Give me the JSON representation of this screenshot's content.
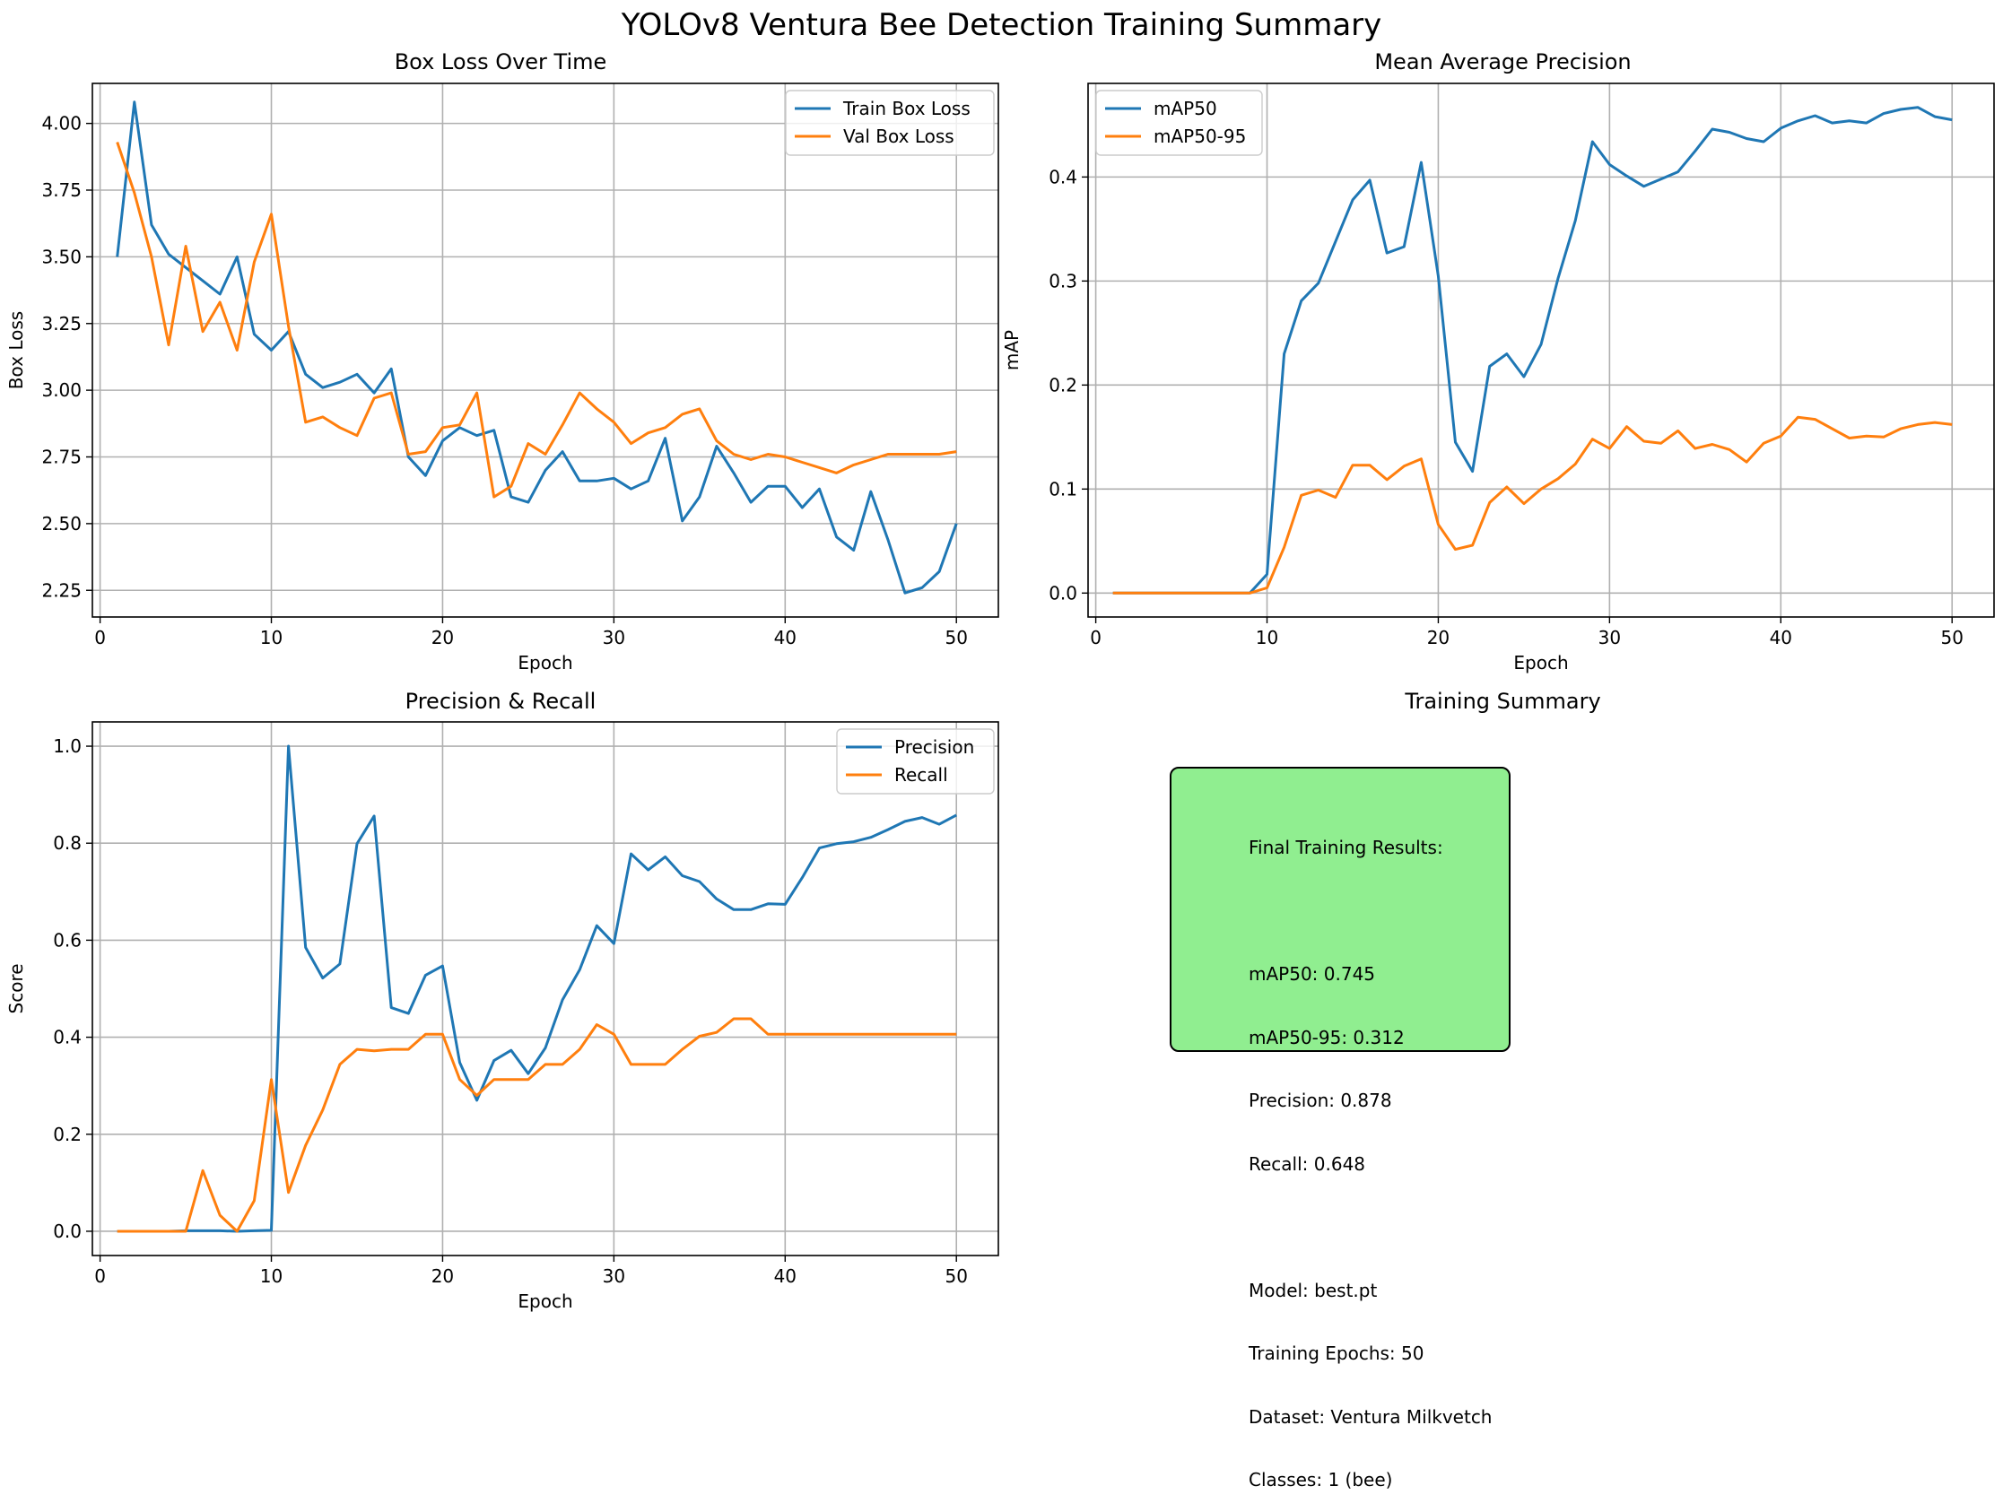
{
  "page_title": "YOLOv8 Ventura Bee Detection Training Summary",
  "summary": {
    "title": "Training Summary",
    "lines": [
      "Final Training Results:",
      "",
      "mAP50: 0.745",
      "mAP50-95: 0.312",
      "Precision: 0.878",
      "Recall: 0.648",
      "",
      "Model: best.pt",
      "Training Epochs: 50",
      "Dataset: Ventura Milkvetch",
      "Classes: 1 (bee)"
    ],
    "box_color": "#90ee90"
  },
  "chart_data": [
    {
      "id": "box_loss",
      "type": "line",
      "title": "Box Loss Over Time",
      "xlabel": "Epoch",
      "ylabel": "Box Loss",
      "xlim": [
        -0.45,
        52.45
      ],
      "ylim": [
        2.15,
        4.15
      ],
      "xticks": [
        0,
        10,
        20,
        30,
        40,
        50
      ],
      "yticks": [
        2.25,
        2.5,
        2.75,
        3.0,
        3.25,
        3.5,
        3.75,
        4.0
      ],
      "ytick_labels": [
        "2.25",
        "2.50",
        "2.75",
        "3.00",
        "3.25",
        "3.50",
        "3.75",
        "4.00"
      ],
      "grid": true,
      "legend": "top-right",
      "x": [
        1,
        2,
        3,
        4,
        5,
        6,
        7,
        8,
        9,
        10,
        11,
        12,
        13,
        14,
        15,
        16,
        17,
        18,
        19,
        20,
        21,
        22,
        23,
        24,
        25,
        26,
        27,
        28,
        29,
        30,
        31,
        32,
        33,
        34,
        35,
        36,
        37,
        38,
        39,
        40,
        41,
        42,
        43,
        44,
        45,
        46,
        47,
        48,
        49,
        50
      ],
      "series": [
        {
          "name": "Train Box Loss",
          "color": "#1f77b4",
          "values": [
            3.5,
            4.08,
            3.62,
            3.51,
            3.46,
            3.41,
            3.36,
            3.5,
            3.21,
            3.15,
            3.22,
            3.06,
            3.01,
            3.03,
            3.06,
            2.99,
            3.08,
            2.75,
            2.68,
            2.81,
            2.86,
            2.83,
            2.85,
            2.6,
            2.58,
            2.7,
            2.77,
            2.66,
            2.66,
            2.67,
            2.63,
            2.66,
            2.82,
            2.51,
            2.6,
            2.79,
            2.69,
            2.58,
            2.64,
            2.64,
            2.56,
            2.63,
            2.45,
            2.4,
            2.62,
            2.44,
            2.24,
            2.26,
            2.32,
            2.5
          ]
        },
        {
          "name": "Val Box Loss",
          "color": "#ff7f0e",
          "values": [
            3.93,
            3.74,
            3.5,
            3.17,
            3.54,
            3.22,
            3.33,
            3.15,
            3.48,
            3.66,
            3.24,
            2.88,
            2.9,
            2.86,
            2.83,
            2.97,
            2.99,
            2.76,
            2.77,
            2.86,
            2.87,
            2.99,
            2.6,
            2.64,
            2.8,
            2.76,
            2.87,
            2.99,
            2.93,
            2.88,
            2.8,
            2.84,
            2.86,
            2.91,
            2.93,
            2.81,
            2.76,
            2.74,
            2.76,
            2.75,
            2.73,
            2.71,
            2.69,
            2.72,
            2.74,
            2.76,
            2.76,
            2.76,
            2.76,
            2.77
          ]
        }
      ]
    },
    {
      "id": "map",
      "type": "line",
      "title": "Mean Average Precision",
      "xlabel": "Epoch",
      "ylabel": "mAP",
      "xlim": [
        -0.45,
        52.45
      ],
      "ylim": [
        -0.023,
        0.49
      ],
      "xticks": [
        0,
        10,
        20,
        30,
        40,
        50
      ],
      "yticks": [
        0.0,
        0.1,
        0.2,
        0.3,
        0.4
      ],
      "ytick_labels": [
        "0.0",
        "0.1",
        "0.2",
        "0.3",
        "0.4"
      ],
      "grid": true,
      "legend": "top-left",
      "x": [
        1,
        2,
        3,
        4,
        5,
        6,
        7,
        8,
        9,
        10,
        11,
        12,
        13,
        14,
        15,
        16,
        17,
        18,
        19,
        20,
        21,
        22,
        23,
        24,
        25,
        26,
        27,
        28,
        29,
        30,
        31,
        32,
        33,
        34,
        35,
        36,
        37,
        38,
        39,
        40,
        41,
        42,
        43,
        44,
        45,
        46,
        47,
        48,
        49,
        50
      ],
      "series": [
        {
          "name": "mAP50",
          "color": "#1f77b4",
          "values": [
            0.0,
            0.0,
            0.0,
            0.0,
            0.0,
            0.0,
            0.0,
            0.0,
            0.0,
            0.018,
            0.23,
            0.281,
            0.298,
            0.338,
            0.378,
            0.397,
            0.327,
            0.333,
            0.414,
            0.305,
            0.145,
            0.117,
            0.218,
            0.23,
            0.208,
            0.239,
            0.303,
            0.358,
            0.434,
            0.412,
            0.401,
            0.391,
            0.398,
            0.405,
            0.425,
            0.446,
            0.443,
            0.437,
            0.434,
            0.447,
            0.454,
            0.459,
            0.452,
            0.454,
            0.452,
            0.461,
            0.465,
            0.467,
            0.458,
            0.455
          ]
        },
        {
          "name": "mAP50-95",
          "color": "#ff7f0e",
          "values": [
            0.0,
            0.0,
            0.0,
            0.0,
            0.0,
            0.0,
            0.0,
            0.0,
            0.0,
            0.005,
            0.044,
            0.094,
            0.099,
            0.092,
            0.123,
            0.123,
            0.109,
            0.122,
            0.129,
            0.066,
            0.042,
            0.046,
            0.087,
            0.102,
            0.086,
            0.1,
            0.11,
            0.124,
            0.148,
            0.139,
            0.16,
            0.146,
            0.144,
            0.156,
            0.139,
            0.143,
            0.138,
            0.126,
            0.144,
            0.151,
            0.169,
            0.167,
            0.158,
            0.149,
            0.151,
            0.15,
            0.158,
            0.162,
            0.164,
            0.162
          ]
        }
      ]
    },
    {
      "id": "pr",
      "type": "line",
      "title": "Precision & Recall",
      "xlabel": "Epoch",
      "ylabel": "Score",
      "xlim": [
        -0.45,
        52.45
      ],
      "ylim": [
        -0.05,
        1.05
      ],
      "xticks": [
        0,
        10,
        20,
        30,
        40,
        50
      ],
      "yticks": [
        0.0,
        0.2,
        0.4,
        0.6,
        0.8,
        1.0
      ],
      "ytick_labels": [
        "0.0",
        "0.2",
        "0.4",
        "0.6",
        "0.8",
        "1.0"
      ],
      "grid": true,
      "legend": "top-right",
      "x": [
        1,
        2,
        3,
        4,
        5,
        6,
        7,
        8,
        9,
        10,
        11,
        12,
        13,
        14,
        15,
        16,
        17,
        18,
        19,
        20,
        21,
        22,
        23,
        24,
        25,
        26,
        27,
        28,
        29,
        30,
        31,
        32,
        33,
        34,
        35,
        36,
        37,
        38,
        39,
        40,
        41,
        42,
        43,
        44,
        45,
        46,
        47,
        48,
        49,
        50
      ],
      "series": [
        {
          "name": "Precision",
          "color": "#1f77b4",
          "values": [
            0.0,
            0.0,
            0.0,
            0.0,
            0.001,
            0.001,
            0.001,
            0.0,
            0.001,
            0.002,
            1.0,
            0.585,
            0.522,
            0.551,
            0.799,
            0.856,
            0.461,
            0.449,
            0.528,
            0.547,
            0.348,
            0.27,
            0.352,
            0.373,
            0.325,
            0.378,
            0.477,
            0.539,
            0.63,
            0.593,
            0.778,
            0.745,
            0.772,
            0.733,
            0.721,
            0.685,
            0.663,
            0.663,
            0.675,
            0.674,
            0.729,
            0.79,
            0.799,
            0.803,
            0.812,
            0.828,
            0.845,
            0.853,
            0.839,
            0.858
          ]
        },
        {
          "name": "Recall",
          "color": "#ff7f0e",
          "values": [
            0.0,
            0.0,
            0.0,
            0.0,
            0.0,
            0.125,
            0.033,
            0.0,
            0.063,
            0.313,
            0.08,
            0.177,
            0.25,
            0.344,
            0.375,
            0.372,
            0.375,
            0.375,
            0.406,
            0.406,
            0.313,
            0.28,
            0.313,
            0.313,
            0.313,
            0.344,
            0.344,
            0.375,
            0.426,
            0.406,
            0.344,
            0.344,
            0.344,
            0.375,
            0.402,
            0.41,
            0.438,
            0.438,
            0.406,
            0.406,
            0.406,
            0.406,
            0.406,
            0.406,
            0.406,
            0.406,
            0.406,
            0.406,
            0.406,
            0.406
          ]
        }
      ]
    }
  ]
}
